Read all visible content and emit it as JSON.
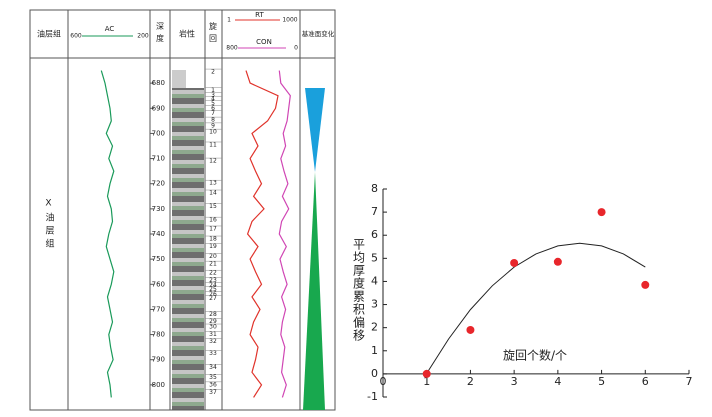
{
  "chart_data": [
    {
      "type": "well-log",
      "headers": [
        "油层组",
        "深度",
        "岩性",
        "旋回",
        "基准面变化"
      ],
      "zone_label": "Ⅹ油层组",
      "depth": [
        675,
        680,
        685,
        690,
        695,
        700,
        705,
        710,
        715,
        720,
        725,
        730,
        735,
        740,
        745,
        750,
        755,
        760,
        765,
        770,
        775,
        780,
        785,
        790,
        795,
        800,
        805
      ],
      "ylim": [
        670,
        810
      ],
      "yticks": [
        680,
        690,
        700,
        710,
        720,
        730,
        740,
        750,
        760,
        770,
        780,
        790,
        800
      ],
      "series": [
        {
          "name": "AC",
          "color": "#1a9a5a",
          "xlim": [
            600,
            200
          ],
          "values": [
            470,
            440,
            420,
            400,
            390,
            430,
            380,
            410,
            370,
            400,
            420,
            390,
            380,
            410,
            430,
            400,
            370,
            390,
            420,
            400,
            380,
            410,
            395,
            375,
            420,
            400,
            390
          ]
        },
        {
          "name": "RT",
          "color": "#e0332b",
          "xlim": [
            1,
            1000
          ],
          "log": true,
          "values": [
            5,
            8,
            200,
            150,
            60,
            10,
            20,
            8,
            15,
            30,
            12,
            40,
            10,
            6,
            20,
            8,
            15,
            30,
            10,
            25,
            12,
            8,
            20,
            15,
            10,
            30,
            12
          ]
        },
        {
          "name": "CON",
          "color": "#d046b4",
          "xlim": [
            800,
            0
          ],
          "values": [
            200,
            180,
            60,
            80,
            100,
            150,
            120,
            180,
            140,
            90,
            160,
            80,
            170,
            200,
            110,
            190,
            150,
            100,
            170,
            120,
            160,
            180,
            130,
            150,
            170,
            110,
            160
          ]
        }
      ],
      "layers": {
        "labels": [
          "2",
          "1",
          "3",
          "4",
          "5",
          "6",
          "7",
          "8",
          "9",
          "10",
          "11",
          "12",
          "13",
          "14",
          "15",
          "16",
          "17",
          "18",
          "19",
          "20",
          "21",
          "22",
          "23",
          "24",
          "25",
          "26",
          "27",
          "28",
          "29",
          "30",
          "31",
          "32",
          "33",
          "34",
          "35",
          "36",
          "37"
        ],
        "depths": [
          675.6,
          683,
          685,
          686.4,
          688,
          690,
          692,
          694.7,
          697,
          699.5,
          704.6,
          711,
          719.8,
          723.7,
          729,
          734.5,
          738,
          742,
          745,
          749,
          752,
          755.6,
          758.4,
          760.4,
          762,
          764,
          765.6,
          772,
          774.8,
          777,
          780,
          782.8,
          787.6,
          793,
          797,
          800,
          803
        ]
      }
    },
    {
      "type": "scatter",
      "xlabel": "旋回个数/个",
      "ylabel": "平均厚度累积偏移",
      "x": [
        1,
        2,
        3,
        4,
        5,
        6
      ],
      "values": [
        0,
        1.9,
        4.8,
        4.85,
        7,
        3.85
      ],
      "color": "#e8262b",
      "fit": {
        "x": [
          1,
          1.5,
          2,
          2.5,
          3,
          3.5,
          4,
          4.5,
          5,
          5.5,
          6
        ],
        "values": [
          0.02,
          1.51,
          2.78,
          3.81,
          4.62,
          5.19,
          5.54,
          5.65,
          5.54,
          5.19,
          4.62
        ],
        "color": "#222222"
      },
      "xlim": [
        0,
        7
      ],
      "ylim": [
        -1,
        8
      ],
      "xticks": [
        0,
        1,
        2,
        3,
        4,
        5,
        6,
        7
      ],
      "yticks": [
        -1,
        0,
        1,
        2,
        3,
        4,
        5,
        6,
        7,
        8
      ]
    }
  ]
}
